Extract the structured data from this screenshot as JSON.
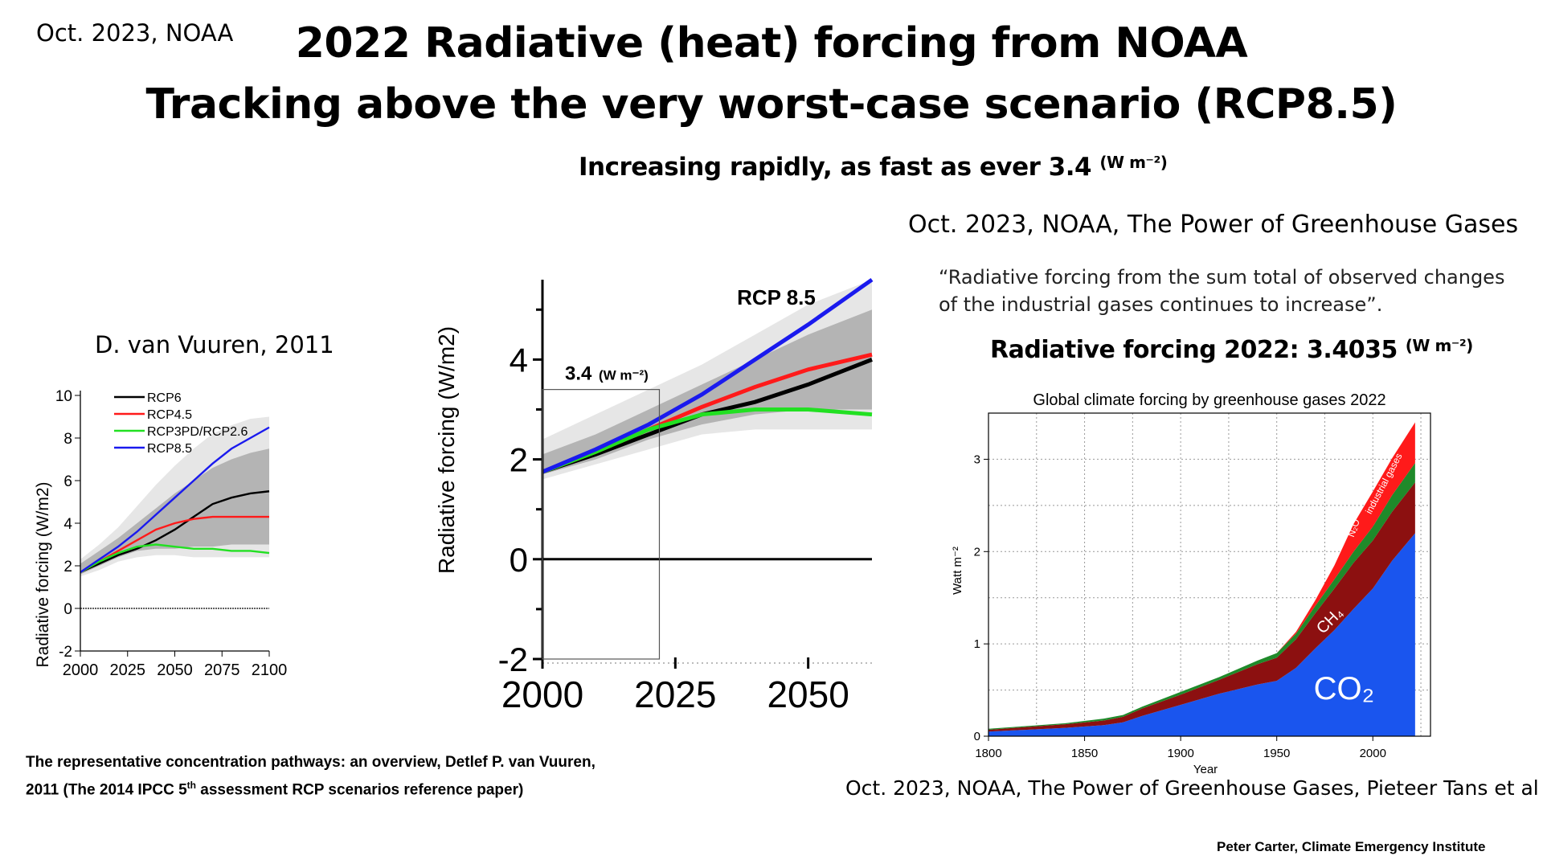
{
  "header": {
    "corner": "Oct. 2023, NOAA",
    "title_line1": "2022 Radiative (heat) forcing from NOAA",
    "title_line2": "Tracking above the very worst-case scenario (RCP8.5)",
    "subtitle_text": "Increasing rapidly, as fast as ever   3.4",
    "subtitle_unit": "(W m⁻²)"
  },
  "left_panel": {
    "source_label": "D. van Vuuren, 2011",
    "citation_line1": "The representative concentration pathways: an overview, Detlef P. van Vuuren,",
    "citation_line2_a": "2011  (The 2014 IPCC  5",
    "citation_line2_sup": "th",
    "citation_line2_b": " assessment RCP scenarios reference paper)"
  },
  "right_panel": {
    "heading": "Oct. 2023, NOAA, The Power of Greenhouse Gases",
    "quote_line1": "“Radiative forcing from the sum total of observed changes",
    "quote_line2": "of the industrial gases continues to increase”.",
    "rf_text": "Radiative forcing 2022: 3.4035",
    "rf_unit": "(W m⁻²)",
    "caption": "Oct. 2023, NOAA, The Power of Greenhouse Gases, Pieteer Tans et al"
  },
  "footer": {
    "credit": "Peter Carter,  Climate Emergency Institute"
  },
  "colors": {
    "rcp6": "#000000",
    "rcp45": "#ff1a1a",
    "rcp26": "#22e022",
    "rcp85": "#1a1aee",
    "band_light": "#e6e6e6",
    "band_dark": "#b4b4b4",
    "co2": "#1a55ee",
    "ch4": "#8c1010",
    "n2o": "#1f8a2a",
    "industrial": "#ff1a1a"
  },
  "chart_data": [
    {
      "type": "line",
      "xlabel": "",
      "ylabel": "Radiative forcing (W/m2)",
      "xlim": [
        2000,
        2100
      ],
      "ylim": [
        -2,
        10
      ],
      "x_ticks": [
        "2000",
        "2025",
        "2050",
        "2075",
        "2100"
      ],
      "y_ticks": [
        "-2",
        "0",
        "2",
        "4",
        "6",
        "8",
        "10"
      ],
      "legend": [
        "RCP6",
        "RCP4.5",
        "RCP3PD/RCP2.6",
        "RCP8.5"
      ],
      "legend_position": "top-left",
      "x": [
        2000,
        2010,
        2020,
        2030,
        2040,
        2050,
        2060,
        2070,
        2080,
        2090,
        2100
      ],
      "series": [
        {
          "name": "RCP6",
          "color_key": "rcp6",
          "values": [
            1.7,
            2.1,
            2.5,
            2.8,
            3.2,
            3.7,
            4.3,
            4.9,
            5.2,
            5.4,
            5.5
          ]
        },
        {
          "name": "RCP4.5",
          "color_key": "rcp45",
          "values": [
            1.7,
            2.2,
            2.7,
            3.2,
            3.7,
            4.0,
            4.2,
            4.3,
            4.3,
            4.3,
            4.3
          ]
        },
        {
          "name": "RCP3PD/RCP2.6",
          "color_key": "rcp26",
          "values": [
            1.7,
            2.2,
            2.6,
            2.9,
            3.0,
            2.9,
            2.8,
            2.8,
            2.7,
            2.7,
            2.6
          ]
        },
        {
          "name": "RCP8.5",
          "color_key": "rcp85",
          "values": [
            1.7,
            2.3,
            2.9,
            3.6,
            4.4,
            5.2,
            6.0,
            6.8,
            7.5,
            8.0,
            8.5
          ]
        }
      ],
      "band_outer_upper": [
        2.3,
        3.0,
        3.8,
        4.8,
        5.8,
        6.7,
        7.5,
        8.2,
        8.6,
        8.9,
        9.0
      ],
      "band_outer_lower": [
        1.5,
        1.8,
        2.2,
        2.4,
        2.5,
        2.5,
        2.4,
        2.4,
        2.4,
        2.4,
        2.4
      ],
      "band_inner_upper": [
        2.1,
        2.7,
        3.3,
        4.0,
        4.7,
        5.4,
        6.0,
        6.6,
        7.0,
        7.3,
        7.5
      ],
      "band_inner_lower": [
        1.6,
        2.0,
        2.4,
        2.7,
        2.8,
        2.8,
        2.9,
        2.9,
        3.0,
        3.0,
        3.0
      ],
      "grid": false
    },
    {
      "type": "line",
      "xlabel": "",
      "ylabel": "Radiative forcing (W/m2)",
      "xlim": [
        2000,
        2062
      ],
      "ylim": [
        -2,
        5.6
      ],
      "x_ticks": [
        "2000",
        "2025",
        "2050"
      ],
      "y_ticks": [
        "-2",
        "0",
        "2",
        "4"
      ],
      "annotations": [
        {
          "text": "RCP 8.5"
        },
        {
          "text": "3.4",
          "unit": "(W m⁻²)",
          "marker_year": 2022,
          "marker_value": 3.4
        }
      ],
      "x": [
        2000,
        2010,
        2020,
        2030,
        2040,
        2050,
        2062
      ],
      "series": [
        {
          "name": "RCP6",
          "color_key": "rcp6",
          "values": [
            1.75,
            2.1,
            2.5,
            2.9,
            3.15,
            3.5,
            4.0
          ]
        },
        {
          "name": "RCP4.5",
          "color_key": "rcp45",
          "values": [
            1.75,
            2.15,
            2.6,
            3.05,
            3.45,
            3.8,
            4.1
          ]
        },
        {
          "name": "RCP3PD/RCP2.6",
          "color_key": "rcp26",
          "values": [
            1.75,
            2.15,
            2.6,
            2.9,
            3.0,
            3.0,
            2.9
          ]
        },
        {
          "name": "RCP8.5",
          "color_key": "rcp85",
          "values": [
            1.75,
            2.2,
            2.7,
            3.3,
            4.0,
            4.7,
            5.6
          ]
        }
      ],
      "band_outer_upper": [
        2.4,
        2.9,
        3.4,
        3.9,
        4.5,
        5.1,
        5.6
      ],
      "band_outer_lower": [
        1.6,
        1.9,
        2.2,
        2.5,
        2.6,
        2.6,
        2.6
      ],
      "band_inner_upper": [
        2.1,
        2.5,
        3.0,
        3.5,
        4.0,
        4.5,
        5.0
      ],
      "band_inner_lower": [
        1.7,
        2.0,
        2.4,
        2.7,
        2.9,
        3.0,
        3.0
      ],
      "grid": false
    },
    {
      "type": "area",
      "title": "Global climate forcing by greenhouse gases 2022",
      "xlabel": "Year",
      "ylabel": "Watt m⁻²",
      "xlim": [
        1800,
        2030
      ],
      "ylim": [
        0,
        3.5
      ],
      "x_ticks": [
        "1800",
        "1850",
        "1900",
        "1950",
        "2000"
      ],
      "y_ticks": [
        "0",
        "1",
        "2",
        "3"
      ],
      "x": [
        1800,
        1820,
        1840,
        1860,
        1870,
        1880,
        1900,
        1920,
        1940,
        1950,
        1960,
        1970,
        1980,
        1990,
        2000,
        2010,
        2022
      ],
      "series": [
        {
          "name": "CO₂",
          "color_key": "co2",
          "values": [
            0.05,
            0.07,
            0.09,
            0.12,
            0.15,
            0.22,
            0.34,
            0.46,
            0.56,
            0.6,
            0.74,
            0.95,
            1.15,
            1.38,
            1.6,
            1.9,
            2.2
          ]
        },
        {
          "name": "CH₄",
          "color_key": "ch4",
          "values": [
            0.02,
            0.03,
            0.04,
            0.05,
            0.06,
            0.08,
            0.11,
            0.15,
            0.22,
            0.25,
            0.31,
            0.38,
            0.45,
            0.5,
            0.52,
            0.53,
            0.55
          ]
        },
        {
          "name": "N₂O",
          "color_key": "n2o",
          "values": [
            0.01,
            0.01,
            0.01,
            0.02,
            0.02,
            0.02,
            0.03,
            0.03,
            0.04,
            0.05,
            0.06,
            0.08,
            0.1,
            0.12,
            0.15,
            0.18,
            0.21
          ]
        },
        {
          "name": "industrial gases",
          "color_key": "industrial",
          "values": [
            0,
            0,
            0,
            0,
            0,
            0,
            0,
            0,
            0,
            0,
            0.02,
            0.06,
            0.15,
            0.3,
            0.38,
            0.4,
            0.44
          ]
        }
      ],
      "grid": true
    }
  ]
}
